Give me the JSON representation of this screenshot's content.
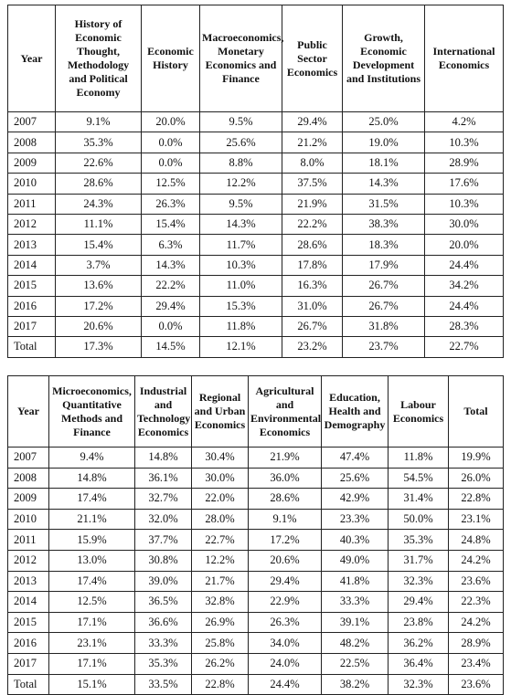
{
  "table1": {
    "columns": [
      "Year",
      "History of Economic Thought, Methodology and Political Economy",
      "Economic History",
      "Macroeconomics, Monetary Economics and Finance",
      "Public Sector Economics",
      "Growth, Economic Development and Institutions",
      "International Economics"
    ],
    "rows": [
      [
        "2007",
        "9.1%",
        "20.0%",
        "9.5%",
        "29.4%",
        "25.0%",
        "4.2%"
      ],
      [
        "2008",
        "35.3%",
        "0.0%",
        "25.6%",
        "21.2%",
        "19.0%",
        "10.3%"
      ],
      [
        "2009",
        "22.6%",
        "0.0%",
        "8.8%",
        "8.0%",
        "18.1%",
        "28.9%"
      ],
      [
        "2010",
        "28.6%",
        "12.5%",
        "12.2%",
        "37.5%",
        "14.3%",
        "17.6%"
      ],
      [
        "2011",
        "24.3%",
        "26.3%",
        "9.5%",
        "21.9%",
        "31.5%",
        "10.3%"
      ],
      [
        "2012",
        "11.1%",
        "15.4%",
        "14.3%",
        "22.2%",
        "38.3%",
        "30.0%"
      ],
      [
        "2013",
        "15.4%",
        "6.3%",
        "11.7%",
        "28.6%",
        "18.3%",
        "20.0%"
      ],
      [
        "2014",
        "3.7%",
        "14.3%",
        "10.3%",
        "17.8%",
        "17.9%",
        "24.4%"
      ],
      [
        "2015",
        "13.6%",
        "22.2%",
        "11.0%",
        "16.3%",
        "26.7%",
        "34.2%"
      ],
      [
        "2016",
        "17.2%",
        "29.4%",
        "15.3%",
        "31.0%",
        "26.7%",
        "24.4%"
      ],
      [
        "2017",
        "20.6%",
        "0.0%",
        "11.8%",
        "26.7%",
        "31.8%",
        "28.3%"
      ],
      [
        "Total",
        "17.3%",
        "14.5%",
        "12.1%",
        "23.2%",
        "23.7%",
        "22.7%"
      ]
    ]
  },
  "table2": {
    "columns": [
      "Year",
      "Microeconomics, Quantitative Methods and Finance",
      "Industrial and Technology Economics",
      "Regional and Urban Economics",
      "Agricultural and Environmental Economics",
      "Education, Health and Demography",
      "Labour Economics",
      "Total"
    ],
    "rows": [
      [
        "2007",
        "9.4%",
        "14.8%",
        "30.4%",
        "21.9%",
        "47.4%",
        "11.8%",
        "19.9%"
      ],
      [
        "2008",
        "14.8%",
        "36.1%",
        "30.0%",
        "36.0%",
        "25.6%",
        "54.5%",
        "26.0%"
      ],
      [
        "2009",
        "17.4%",
        "32.7%",
        "22.0%",
        "28.6%",
        "42.9%",
        "31.4%",
        "22.8%"
      ],
      [
        "2010",
        "21.1%",
        "32.0%",
        "28.0%",
        "9.1%",
        "23.3%",
        "50.0%",
        "23.1%"
      ],
      [
        "2011",
        "15.9%",
        "37.7%",
        "22.7%",
        "17.2%",
        "40.3%",
        "35.3%",
        "24.8%"
      ],
      [
        "2012",
        "13.0%",
        "30.8%",
        "12.2%",
        "20.6%",
        "49.0%",
        "31.7%",
        "24.2%"
      ],
      [
        "2013",
        "17.4%",
        "39.0%",
        "21.7%",
        "29.4%",
        "41.8%",
        "32.3%",
        "23.6%"
      ],
      [
        "2014",
        "12.5%",
        "36.5%",
        "32.8%",
        "22.9%",
        "33.3%",
        "29.4%",
        "22.3%"
      ],
      [
        "2015",
        "17.1%",
        "36.6%",
        "26.9%",
        "26.3%",
        "39.1%",
        "23.8%",
        "24.2%"
      ],
      [
        "2016",
        "23.1%",
        "33.3%",
        "25.8%",
        "34.0%",
        "48.2%",
        "36.2%",
        "28.9%"
      ],
      [
        "2017",
        "17.1%",
        "35.3%",
        "26.2%",
        "24.0%",
        "22.5%",
        "36.4%",
        "23.4%"
      ],
      [
        "Total",
        "15.1%",
        "33.5%",
        "22.8%",
        "24.4%",
        "38.2%",
        "32.3%",
        "23.6%"
      ]
    ]
  }
}
